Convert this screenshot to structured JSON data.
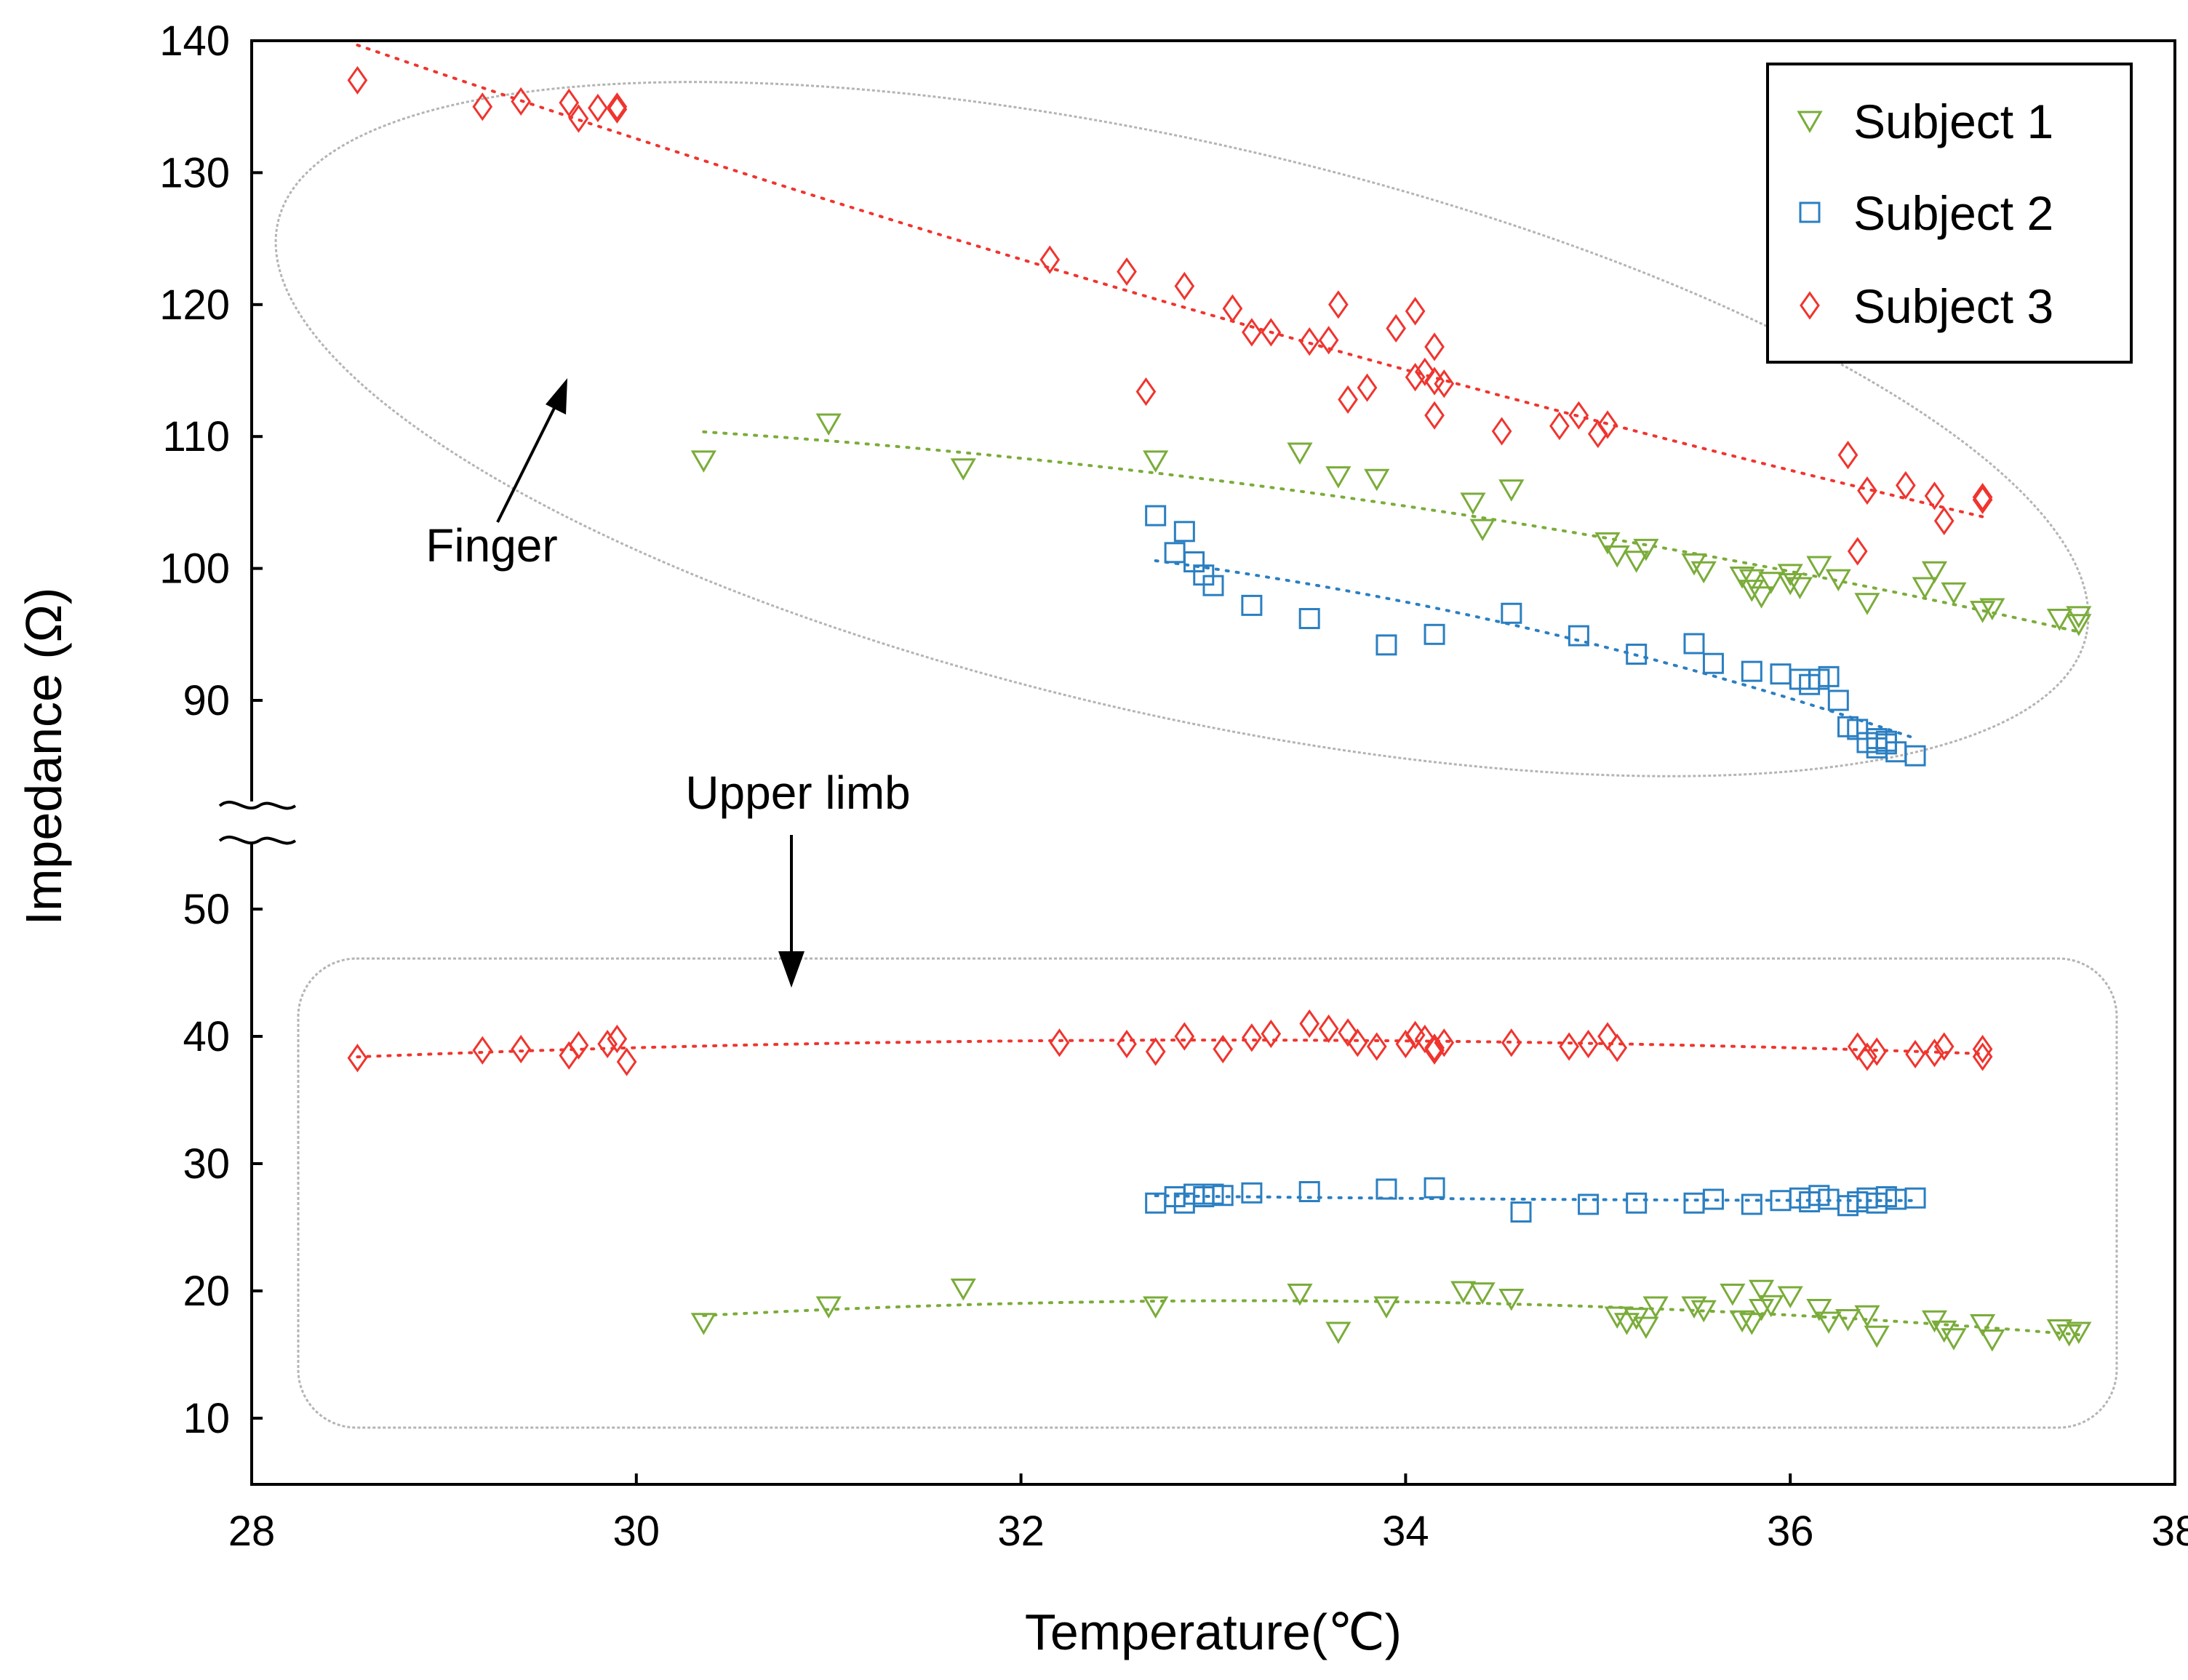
{
  "chart_data": {
    "type": "scatter",
    "title": "",
    "xlabel": "Temperature(℃)",
    "ylabel": "Impedance (Ω)",
    "xlim": [
      28,
      38
    ],
    "x_ticks": [
      "28",
      "30",
      "32",
      "34",
      "36",
      "38"
    ],
    "y_ticks": [
      "10",
      "20",
      "30",
      "40",
      "50",
      "90",
      "100",
      "110",
      "120",
      "130",
      "140"
    ],
    "y_axis_break": {
      "lower_range": [
        5,
        56
      ],
      "upper_range": [
        84,
        140
      ]
    },
    "grid": false,
    "legend_position": "top-right",
    "annotations": {
      "finger": "Finger",
      "upper_limb": "Upper limb"
    },
    "series": [
      {
        "name": "Subject 1",
        "marker": "triangle-down",
        "color": "#7aac3a",
        "finger": [
          [
            30.35,
            108.2
          ],
          [
            31.0,
            111.0
          ],
          [
            31.7,
            107.6
          ],
          [
            32.7,
            108.2
          ],
          [
            33.45,
            108.8
          ],
          [
            33.65,
            107.0
          ],
          [
            33.85,
            106.8
          ],
          [
            34.35,
            105.0
          ],
          [
            34.4,
            103.0
          ],
          [
            34.55,
            106.0
          ],
          [
            35.05,
            102.0
          ],
          [
            35.1,
            101.0
          ],
          [
            35.2,
            100.6
          ],
          [
            35.25,
            101.5
          ],
          [
            35.5,
            100.4
          ],
          [
            35.55,
            99.8
          ],
          [
            35.75,
            99.4
          ],
          [
            35.8,
            99.2
          ],
          [
            35.9,
            99.0
          ],
          [
            36.0,
            99.6
          ],
          [
            36.05,
            98.6
          ],
          [
            36.15,
            100.2
          ],
          [
            36.25,
            99.2
          ],
          [
            36.4,
            97.4
          ],
          [
            36.7,
            98.6
          ],
          [
            36.75,
            99.8
          ],
          [
            36.85,
            98.2
          ],
          [
            37.0,
            96.8
          ],
          [
            37.05,
            97.0
          ],
          [
            37.4,
            96.2
          ],
          [
            37.5,
            96.4
          ],
          [
            37.5,
            95.8
          ],
          [
            35.85,
            97.9
          ],
          [
            35.8,
            98.4
          ],
          [
            36.0,
            98.9
          ]
        ],
        "upper_limb": [
          [
            30.35,
            17.5
          ],
          [
            31.0,
            18.8
          ],
          [
            31.7,
            20.2
          ],
          [
            32.7,
            18.8
          ],
          [
            33.45,
            19.8
          ],
          [
            33.65,
            16.8
          ],
          [
            33.9,
            18.8
          ],
          [
            34.3,
            20.0
          ],
          [
            34.4,
            19.9
          ],
          [
            34.55,
            19.4
          ],
          [
            35.1,
            18.0
          ],
          [
            35.15,
            17.5
          ],
          [
            35.2,
            17.9
          ],
          [
            35.25,
            17.2
          ],
          [
            35.3,
            18.8
          ],
          [
            35.5,
            18.8
          ],
          [
            35.55,
            18.5
          ],
          [
            35.7,
            19.8
          ],
          [
            35.75,
            17.7
          ],
          [
            35.8,
            17.5
          ],
          [
            35.85,
            20.1
          ],
          [
            35.9,
            18.9
          ],
          [
            36.0,
            19.6
          ],
          [
            36.15,
            18.6
          ],
          [
            36.2,
            17.6
          ],
          [
            36.3,
            17.8
          ],
          [
            36.4,
            18.1
          ],
          [
            36.45,
            16.5
          ],
          [
            36.75,
            17.7
          ],
          [
            36.8,
            16.9
          ],
          [
            36.85,
            16.3
          ],
          [
            37.0,
            17.4
          ],
          [
            37.05,
            16.2
          ],
          [
            37.4,
            17.0
          ],
          [
            37.5,
            16.8
          ],
          [
            37.45,
            16.6
          ],
          [
            35.85,
            18.6
          ]
        ]
      },
      {
        "name": "Subject 2",
        "marker": "square",
        "color": "#2b7fc1",
        "finger": [
          [
            32.7,
            104.0
          ],
          [
            32.8,
            101.2
          ],
          [
            32.85,
            102.8
          ],
          [
            32.9,
            100.5
          ],
          [
            32.95,
            99.5
          ],
          [
            33.0,
            98.7
          ],
          [
            33.2,
            97.2
          ],
          [
            33.5,
            96.2
          ],
          [
            33.9,
            94.2
          ],
          [
            34.15,
            95.0
          ],
          [
            34.55,
            96.6
          ],
          [
            34.9,
            94.9
          ],
          [
            35.2,
            93.5
          ],
          [
            35.5,
            94.3
          ],
          [
            35.6,
            92.8
          ],
          [
            35.8,
            92.2
          ],
          [
            35.95,
            92.0
          ],
          [
            36.05,
            91.6
          ],
          [
            36.1,
            91.2
          ],
          [
            36.15,
            91.6
          ],
          [
            36.2,
            91.8
          ],
          [
            36.25,
            90.0
          ],
          [
            36.3,
            88.0
          ],
          [
            36.35,
            87.8
          ],
          [
            36.4,
            86.8
          ],
          [
            36.45,
            87.1
          ],
          [
            36.5,
            86.7
          ],
          [
            36.55,
            86.1
          ],
          [
            36.45,
            86.4
          ],
          [
            36.65,
            85.8
          ],
          [
            36.5,
            86.9
          ]
        ],
        "upper_limb": [
          [
            32.7,
            26.9
          ],
          [
            32.8,
            27.4
          ],
          [
            32.85,
            26.9
          ],
          [
            32.9,
            27.6
          ],
          [
            32.95,
            27.4
          ],
          [
            33.0,
            27.6
          ],
          [
            33.05,
            27.5
          ],
          [
            33.2,
            27.7
          ],
          [
            33.5,
            27.8
          ],
          [
            33.9,
            28.0
          ],
          [
            34.15,
            28.1
          ],
          [
            34.6,
            26.2
          ],
          [
            34.95,
            26.8
          ],
          [
            35.2,
            26.9
          ],
          [
            35.5,
            26.9
          ],
          [
            35.6,
            27.2
          ],
          [
            35.8,
            26.8
          ],
          [
            35.95,
            27.1
          ],
          [
            36.05,
            27.3
          ],
          [
            36.1,
            27.0
          ],
          [
            36.15,
            27.5
          ],
          [
            36.2,
            27.2
          ],
          [
            36.3,
            26.7
          ],
          [
            36.35,
            27.0
          ],
          [
            36.4,
            27.3
          ],
          [
            36.45,
            26.9
          ],
          [
            36.5,
            27.4
          ],
          [
            36.55,
            27.2
          ],
          [
            36.65,
            27.3
          ]
        ]
      },
      {
        "name": "Subject 3",
        "marker": "diamond",
        "color": "#f0342e",
        "finger": [
          [
            28.55,
            137.0
          ],
          [
            29.2,
            135.0
          ],
          [
            29.4,
            135.4
          ],
          [
            29.65,
            135.3
          ],
          [
            29.7,
            134.1
          ],
          [
            29.8,
            134.9
          ],
          [
            29.9,
            134.8
          ],
          [
            29.9,
            135.0
          ],
          [
            32.15,
            123.4
          ],
          [
            32.55,
            122.5
          ],
          [
            32.65,
            113.4
          ],
          [
            32.85,
            121.4
          ],
          [
            33.1,
            119.7
          ],
          [
            33.2,
            117.9
          ],
          [
            33.3,
            117.9
          ],
          [
            33.5,
            117.2
          ],
          [
            33.6,
            117.3
          ],
          [
            33.65,
            120.0
          ],
          [
            33.7,
            112.8
          ],
          [
            33.8,
            113.7
          ],
          [
            33.95,
            118.2
          ],
          [
            34.05,
            119.5
          ],
          [
            34.05,
            114.5
          ],
          [
            34.1,
            114.9
          ],
          [
            34.15,
            114.2
          ],
          [
            34.15,
            116.8
          ],
          [
            34.15,
            111.6
          ],
          [
            34.2,
            114.0
          ],
          [
            34.5,
            110.4
          ],
          [
            34.8,
            110.8
          ],
          [
            34.9,
            111.6
          ],
          [
            35.0,
            110.2
          ],
          [
            35.05,
            110.9
          ],
          [
            36.3,
            108.6
          ],
          [
            36.35,
            101.3
          ],
          [
            36.4,
            105.9
          ],
          [
            36.6,
            106.3
          ],
          [
            36.75,
            105.5
          ],
          [
            36.8,
            103.6
          ],
          [
            37.0,
            105.4
          ],
          [
            37.0,
            105.2
          ]
        ],
        "upper_limb": [
          [
            28.55,
            38.3
          ],
          [
            29.2,
            38.9
          ],
          [
            29.4,
            39.0
          ],
          [
            29.65,
            38.5
          ],
          [
            29.7,
            39.3
          ],
          [
            29.85,
            39.4
          ],
          [
            29.9,
            39.8
          ],
          [
            29.95,
            38.0
          ],
          [
            32.2,
            39.5
          ],
          [
            32.55,
            39.4
          ],
          [
            32.7,
            38.8
          ],
          [
            32.85,
            40.0
          ],
          [
            33.05,
            39.0
          ],
          [
            33.2,
            39.9
          ],
          [
            33.3,
            40.2
          ],
          [
            33.5,
            41.0
          ],
          [
            33.6,
            40.6
          ],
          [
            33.7,
            40.3
          ],
          [
            33.75,
            39.5
          ],
          [
            33.85,
            39.2
          ],
          [
            34.0,
            39.4
          ],
          [
            34.05,
            40.1
          ],
          [
            34.1,
            39.8
          ],
          [
            34.15,
            38.9
          ],
          [
            34.15,
            39.1
          ],
          [
            34.2,
            39.5
          ],
          [
            34.55,
            39.5
          ],
          [
            34.85,
            39.2
          ],
          [
            34.95,
            39.4
          ],
          [
            35.05,
            40.0
          ],
          [
            35.1,
            39.1
          ],
          [
            36.35,
            39.2
          ],
          [
            36.4,
            38.4
          ],
          [
            36.45,
            38.8
          ],
          [
            36.65,
            38.6
          ],
          [
            36.75,
            38.7
          ],
          [
            36.8,
            39.2
          ],
          [
            37.0,
            38.4
          ],
          [
            37.0,
            39.0
          ]
        ]
      }
    ]
  }
}
